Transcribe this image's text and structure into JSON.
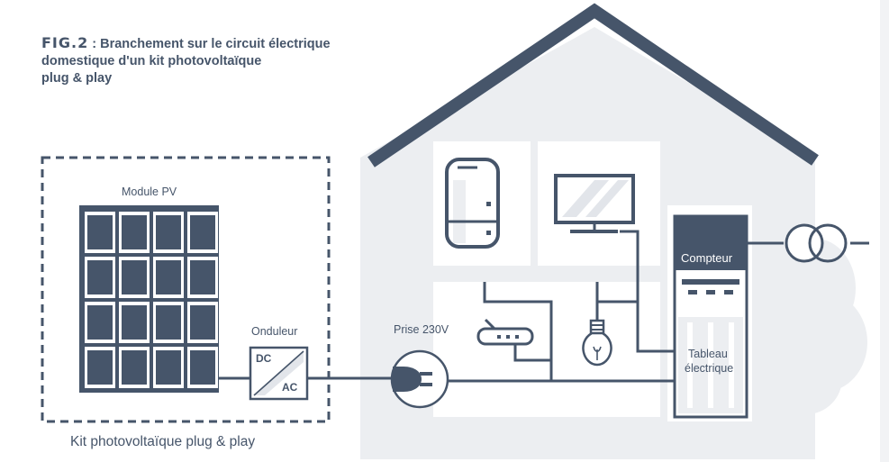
{
  "title": {
    "fig": "FIG.2",
    "separator": " : ",
    "line1": "Branchement sur le circuit électrique",
    "line2": "domestique d'un kit photovoltaïque",
    "line3": "plug & play"
  },
  "labels": {
    "module_pv": "Module PV",
    "onduleur": "Onduleur",
    "dc": "DC",
    "ac": "AC",
    "prise": "Prise 230V",
    "compteur": "Compteur",
    "tableau_line1": "Tableau",
    "tableau_line2": "électrique",
    "kit_caption": "Kit photovoltaïque plug & play"
  },
  "colors": {
    "dark": "#46556a",
    "light_gray": "#eceef1",
    "mid_gray": "#c9ced6",
    "white": "#ffffff"
  },
  "icons": [
    "solar-panel-icon",
    "inverter-icon",
    "plug-icon",
    "fridge-icon",
    "tv-icon",
    "router-icon",
    "light-bulb-icon",
    "meter-icon",
    "transformer-icon",
    "tree-icon",
    "house-roof-icon"
  ]
}
